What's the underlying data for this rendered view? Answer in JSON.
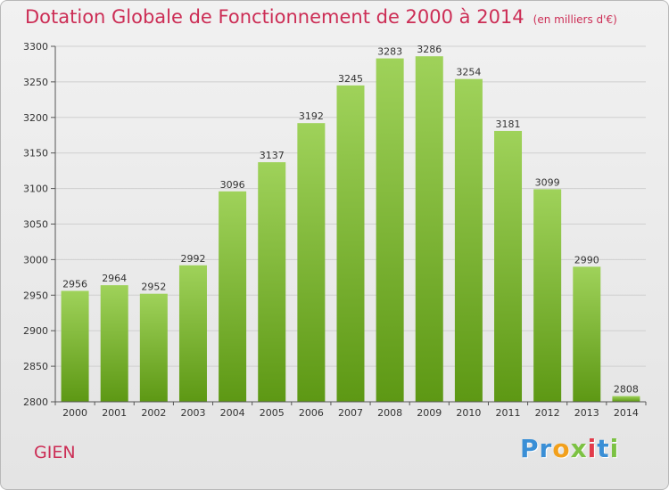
{
  "colors": {
    "accent": "#cc2d55",
    "bar_top": "#9fd25a",
    "bar_bottom": "#5d9814",
    "grid": "#cfcfcf"
  },
  "chart_data": {
    "type": "bar",
    "title": "Dotation Globale de Fonctionnement de 2000 à 2014",
    "subtitle": "(en milliers d'€)",
    "categories": [
      "2000",
      "2001",
      "2002",
      "2003",
      "2004",
      "2005",
      "2006",
      "2007",
      "2008",
      "2009",
      "2010",
      "2011",
      "2012",
      "2013",
      "2014"
    ],
    "values": [
      2956,
      2964,
      2952,
      2992,
      3096,
      3137,
      3192,
      3245,
      3283,
      3286,
      3254,
      3181,
      3099,
      2990,
      2808
    ],
    "ylim": [
      2800,
      3300
    ],
    "yticks": [
      2800,
      2850,
      2900,
      2950,
      3000,
      3050,
      3100,
      3150,
      3200,
      3250,
      3300
    ],
    "grid": true,
    "data_labels": true
  },
  "footer": {
    "city": "GIEN",
    "logo_letters": [
      {
        "char": "P",
        "color": "#3a8fd6"
      },
      {
        "char": "r",
        "color": "#3a8fd6"
      },
      {
        "char": "o",
        "color": "#f2a01c"
      },
      {
        "char": "x",
        "color": "#7cc243"
      },
      {
        "char": "i",
        "color": "#e23c4b"
      },
      {
        "char": "t",
        "color": "#3a8fd6"
      },
      {
        "char": "i",
        "color": "#7cc243"
      }
    ]
  }
}
